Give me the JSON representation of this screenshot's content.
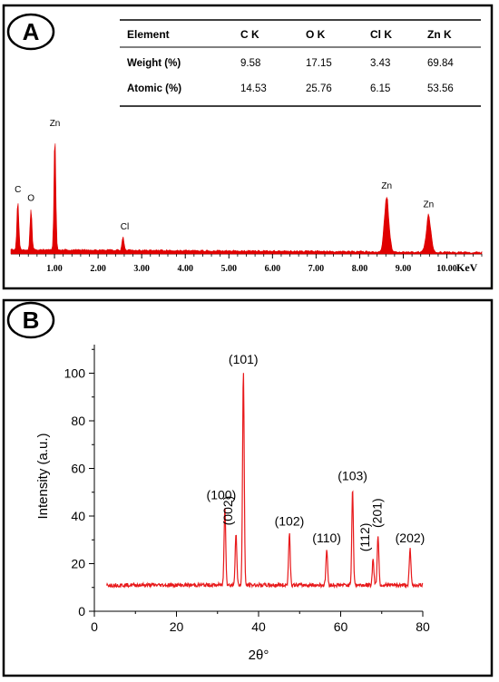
{
  "panels": {
    "a": {
      "badge": "A"
    },
    "b": {
      "badge": "B"
    }
  },
  "eds_table": {
    "header": {
      "label": "Element",
      "cols": [
        "C K",
        "O K",
        "Cl K",
        "Zn K"
      ]
    },
    "rows": [
      {
        "label": "Weight (%)",
        "values": [
          "9.58",
          "17.15",
          "3.43",
          "69.84"
        ]
      },
      {
        "label": "Atomic (%)",
        "values": [
          "14.53",
          "25.76",
          "6.15",
          "53.56"
        ]
      }
    ]
  },
  "chart_data": [
    {
      "type": "line",
      "xlabel": "KeV",
      "ylabel": "",
      "xlim": [
        0,
        10.8
      ],
      "xticks": [
        "1.00",
        "2.00",
        "3.00",
        "4.00",
        "5.00",
        "6.00",
        "7.00",
        "8.00",
        "9.00",
        "10.00"
      ],
      "baseline_counts": 0.03,
      "peaks": [
        {
          "label": "C",
          "x": 0.16,
          "height": 0.43
        },
        {
          "label": "O",
          "x": 0.46,
          "height": 0.36
        },
        {
          "label": "Zn",
          "x": 1.01,
          "height": 0.96
        },
        {
          "label": "Cl",
          "x": 2.57,
          "height": 0.13
        },
        {
          "label": "Zn",
          "x": 8.62,
          "height": 0.46
        },
        {
          "label": "Zn",
          "x": 9.58,
          "height": 0.31
        }
      ],
      "color": "#e00000"
    },
    {
      "type": "line",
      "xlabel": "2θ°",
      "ylabel": "Intensity (a.u.)",
      "xlim": [
        0,
        80
      ],
      "ylim": [
        0,
        112
      ],
      "xticks": [
        0,
        20,
        40,
        60,
        80
      ],
      "yticks": [
        0,
        20,
        40,
        60,
        80,
        100
      ],
      "baseline": 11,
      "series": [
        {
          "peaks": [
            {
              "label": "(100)",
              "x": 31.8,
              "y": 44
            },
            {
              "label": "(002)",
              "x": 34.5,
              "y": 33
            },
            {
              "label": "(101)",
              "x": 36.3,
              "y": 101
            },
            {
              "label": "(102)",
              "x": 47.5,
              "y": 33
            },
            {
              "label": "(110)",
              "x": 56.6,
              "y": 26
            },
            {
              "label": "(103)",
              "x": 62.9,
              "y": 52
            },
            {
              "label": "(112)",
              "x": 67.9,
              "y": 22
            },
            {
              "label": "(201)",
              "x": 69.1,
              "y": 32
            },
            {
              "label": "(202)",
              "x": 76.9,
              "y": 26
            }
          ]
        }
      ],
      "color": "#e8191b"
    }
  ]
}
